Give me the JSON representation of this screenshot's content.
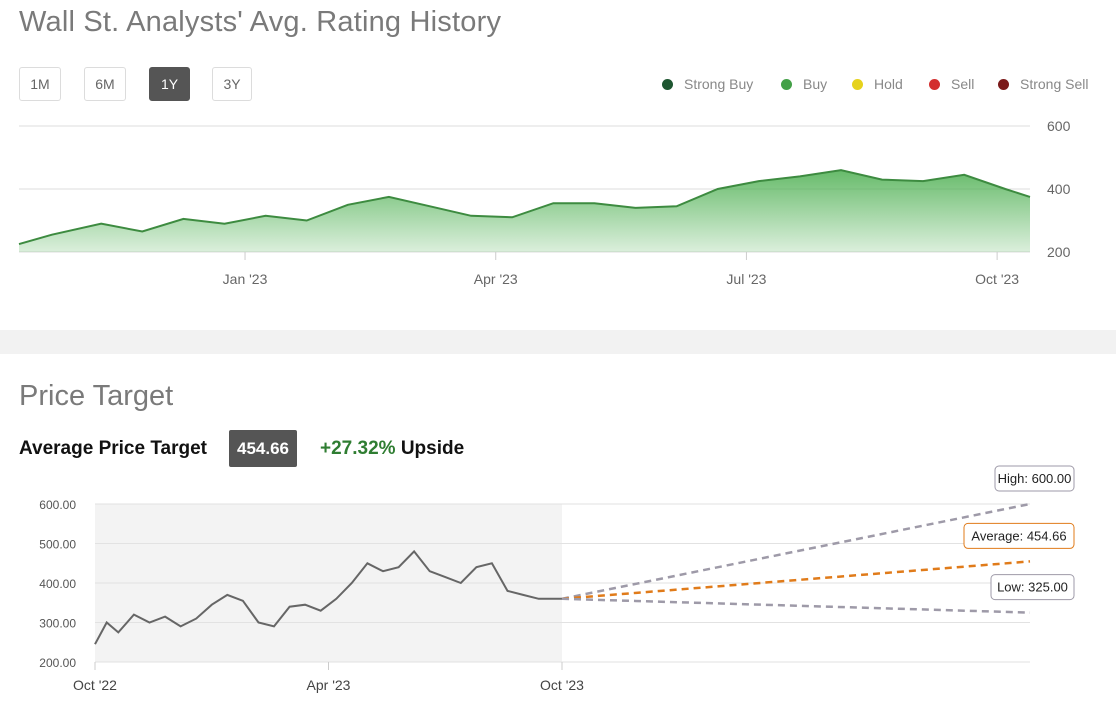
{
  "rating_history": {
    "title": "Wall St. Analysts' Avg. Rating History",
    "range_buttons": [
      {
        "label": "1M",
        "active": false
      },
      {
        "label": "6M",
        "active": false
      },
      {
        "label": "1Y",
        "active": true
      },
      {
        "label": "3Y",
        "active": false
      }
    ],
    "legend": [
      {
        "label": "Strong Buy",
        "color": "#1e5631"
      },
      {
        "label": "Buy",
        "color": "#43a047"
      },
      {
        "label": "Hold",
        "color": "#e6d21c"
      },
      {
        "label": "Sell",
        "color": "#d32f2f"
      },
      {
        "label": "Strong Sell",
        "color": "#7b1a1a"
      }
    ]
  },
  "price_target": {
    "title": "Price Target",
    "average_label": "Average Price Target",
    "average_value": "454.66",
    "upside_pct": "+27.32%",
    "upside_word": "Upside"
  },
  "chart_data": [
    {
      "type": "area",
      "title": "Wall St. Analysts' Avg. Rating History",
      "x_ticks": [
        "Jan '23",
        "Apr '23",
        "Jul '23",
        "Oct '23"
      ],
      "y_ticks": [
        200,
        400,
        600
      ],
      "ylim": [
        200,
        600
      ],
      "y_axis_position": "right",
      "grid": true,
      "legend_position": "top-right",
      "series": [
        {
          "color": "#4caf50",
          "x_month_offset": [
            0,
            0.4,
            1,
            1.5,
            2,
            2.5,
            3,
            3.5,
            4,
            4.5,
            5,
            5.5,
            6,
            6.5,
            7,
            7.5,
            8,
            8.5,
            9,
            9.5,
            10,
            10.5,
            11,
            11.5,
            12,
            12.3
          ],
          "values": [
            225,
            255,
            290,
            265,
            305,
            290,
            315,
            300,
            350,
            375,
            345,
            315,
            310,
            355,
            355,
            340,
            345,
            400,
            425,
            440,
            460,
            430,
            425,
            445,
            400,
            375
          ]
        }
      ]
    },
    {
      "type": "line",
      "title": "Price Target",
      "x_ticks": [
        "Oct '22",
        "Apr '23",
        "Oct '23"
      ],
      "y_ticks": [
        "200.00",
        "300.00",
        "400.00",
        "500.00",
        "600.00"
      ],
      "ylim": [
        200,
        600
      ],
      "grid": true,
      "history": {
        "color": "#666666",
        "x_month_offset": [
          0,
          0.3,
          0.6,
          1,
          1.4,
          1.8,
          2.2,
          2.6,
          3,
          3.4,
          3.8,
          4.2,
          4.6,
          5,
          5.4,
          5.8,
          6.2,
          6.6,
          7,
          7.4,
          7.8,
          8.2,
          8.6,
          9,
          9.4,
          9.8,
          10.2,
          10.6,
          11,
          11.4,
          11.7,
          12
        ],
        "values": [
          245,
          300,
          275,
          320,
          300,
          315,
          290,
          310,
          345,
          370,
          355,
          300,
          290,
          340,
          345,
          330,
          360,
          400,
          450,
          430,
          440,
          480,
          430,
          415,
          400,
          440,
          450,
          380,
          370,
          360,
          360,
          360
        ]
      },
      "projections": [
        {
          "label": "High: 600.00",
          "value": 600.0,
          "color": "#9e9aa8"
        },
        {
          "label": "Average: 454.66",
          "value": 454.66,
          "color": "#e07b1a"
        },
        {
          "label": "Low: 325.00",
          "value": 325.0,
          "color": "#9e9aa8"
        }
      ],
      "projection_start": 360
    }
  ]
}
